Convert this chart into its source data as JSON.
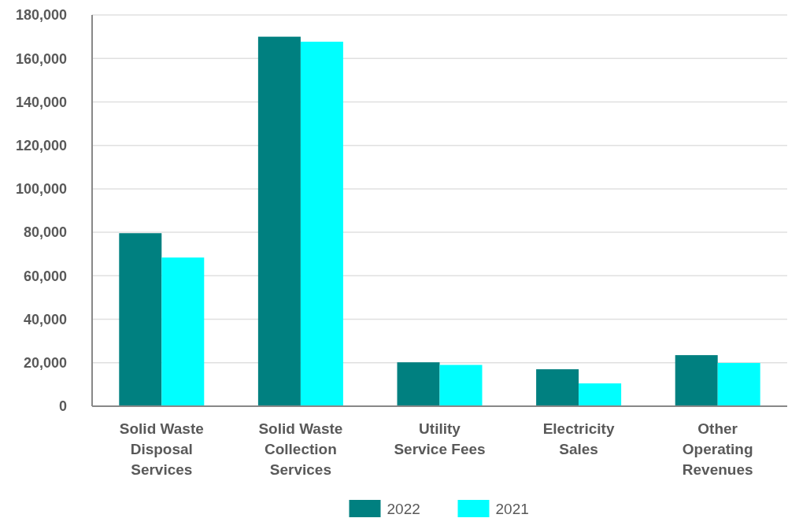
{
  "chart_data": {
    "type": "bar",
    "categories": [
      "Solid Waste Disposal Services",
      "Solid Waste Collection Services",
      "Utility Service Fees",
      "Electricity Sales",
      "Other Operating Revenues"
    ],
    "series": [
      {
        "name": "2022",
        "color": "#008080",
        "values": [
          79600,
          170000,
          20200,
          17000,
          23500
        ]
      },
      {
        "name": "2021",
        "color": "#00ffff",
        "values": [
          68400,
          167700,
          19000,
          10500,
          19900
        ]
      }
    ],
    "ylim": [
      0,
      180000
    ],
    "yticks": [
      {
        "value": 0,
        "label": "0"
      },
      {
        "value": 20000,
        "label": "20,000"
      },
      {
        "value": 40000,
        "label": "40,000"
      },
      {
        "value": 60000,
        "label": "60,000"
      },
      {
        "value": 80000,
        "label": "80,000"
      },
      {
        "value": 100000,
        "label": "100,000"
      },
      {
        "value": 120000,
        "label": "120,000"
      },
      {
        "value": 140000,
        "label": "140,000"
      },
      {
        "value": 160000,
        "label": "160,000"
      },
      {
        "value": 180000,
        "label": "180,000"
      }
    ],
    "grid": "y",
    "legend": "bottom"
  }
}
